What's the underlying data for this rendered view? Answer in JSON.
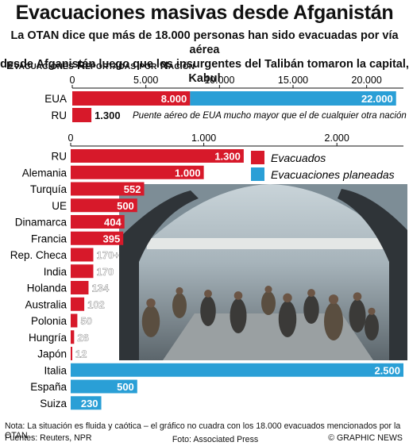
{
  "title": "Evacuaciones masivas desde Afganistán",
  "subtitle_1": "La OTAN dice que más de 18.000 personas han sido evacuadas por vía aérea",
  "subtitle_2": "desde Afganistán luego que los insurgentes del Talibán tomaron la capital, Kabul",
  "section_label": "Evacuaciones Reportadas por Nación",
  "colors": {
    "evacuated": "#d7192a",
    "planned": "#2a9fd6",
    "photo_bg": "#7d8d96"
  },
  "chart_data": [
    {
      "type": "bar",
      "orientation": "horizontal",
      "categories": [
        "EUA",
        "RU"
      ],
      "series": [
        {
          "name": "Evacuados",
          "values": [
            8000,
            1300
          ],
          "labels": [
            "8.000",
            "1.300"
          ]
        },
        {
          "name": "Evacuaciones planeadas",
          "values": [
            22000,
            null
          ],
          "labels": [
            "22.000",
            ""
          ]
        }
      ],
      "xlim": [
        0,
        22500
      ],
      "xticks": [
        0,
        5000,
        10000,
        15000,
        20000
      ],
      "xtick_labels": [
        "0",
        "5.000",
        "10.000",
        "15.000",
        "20.000"
      ],
      "annotation": "Puente aéreo de EUA mucho mayor que el de cualquier otra nación"
    },
    {
      "type": "bar",
      "orientation": "horizontal",
      "categories": [
        "RU",
        "Alemania",
        "Turquía",
        "UE",
        "Dinamarca",
        "Francia",
        "Rep. Checa",
        "India",
        "Holanda",
        "Australia",
        "Polonia",
        "Hungría",
        "Japón",
        "Italia",
        "España",
        "Suiza"
      ],
      "values": [
        1300,
        1000,
        552,
        500,
        404,
        395,
        170,
        170,
        134,
        102,
        50,
        26,
        12,
        2500,
        500,
        230
      ],
      "value_labels": [
        "1.300",
        "1.000",
        "552",
        "500",
        "404",
        "395",
        "170+",
        "170",
        "134",
        "102",
        "50",
        "26",
        "12",
        "2.500",
        "500",
        "230"
      ],
      "series_of": [
        "Evacuados",
        "Evacuados",
        "Evacuados",
        "Evacuados",
        "Evacuados",
        "Evacuados",
        "Evacuados",
        "Evacuados",
        "Evacuados",
        "Evacuados",
        "Evacuados",
        "Evacuados",
        "Evacuados",
        "Evacuaciones planeadas",
        "Evacuaciones planeadas",
        "Evacuaciones planeadas"
      ],
      "xlim": [
        0,
        2500
      ],
      "xticks": [
        0,
        1000,
        2000
      ],
      "xtick_labels": [
        "0",
        "1.000",
        "2.000"
      ],
      "legend": [
        "Evacuados",
        "Evacuaciones planeadas"
      ],
      "legend_position": "top-right"
    }
  ],
  "footer": {
    "note": "Nota: La situación es fluida y caótica – el gráfico no cuadra con los 18.000 evacuados mencionados por la OTAN",
    "sources": "Fuentes: Reuters, NPR",
    "photo": "Foto: Associated Press",
    "logo": "© GRAPHIC NEWS"
  }
}
